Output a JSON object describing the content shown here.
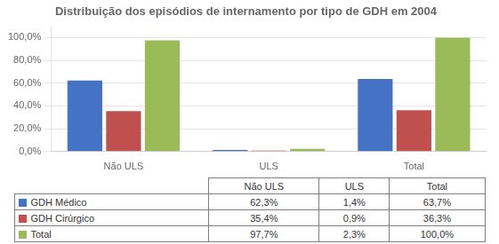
{
  "chart_data": {
    "type": "bar",
    "title": "Distribuição dos episódios de internamento por tipo de GDH em 2004",
    "categories": [
      "Não ULS",
      "ULS",
      "Total"
    ],
    "series": [
      {
        "name": "GDH Médico",
        "color": "#4472C4",
        "values": [
          62.3,
          1.4,
          63.7
        ],
        "value_labels": [
          "62,3%",
          "1,4%",
          "63,7%"
        ]
      },
      {
        "name": "GDH Cirúrgico",
        "color": "#C0504D",
        "values": [
          35.4,
          0.9,
          36.3
        ],
        "value_labels": [
          "35,4%",
          "0,9%",
          "36,3%"
        ]
      },
      {
        "name": "Total",
        "color": "#9BBB59",
        "values": [
          97.7,
          2.3,
          100.0
        ],
        "value_labels": [
          "97,7%",
          "2,3%",
          "100,0%"
        ]
      }
    ],
    "ylim": [
      0,
      110
    ],
    "yticks": [
      {
        "value": 0,
        "label": "0,0%"
      },
      {
        "value": 20,
        "label": "20,0%"
      },
      {
        "value": 40,
        "label": "40,0%"
      },
      {
        "value": 60,
        "label": "60,0%"
      },
      {
        "value": 80,
        "label": "80,0%"
      },
      {
        "value": 100,
        "label": "100,0%"
      }
    ],
    "grid": true
  }
}
